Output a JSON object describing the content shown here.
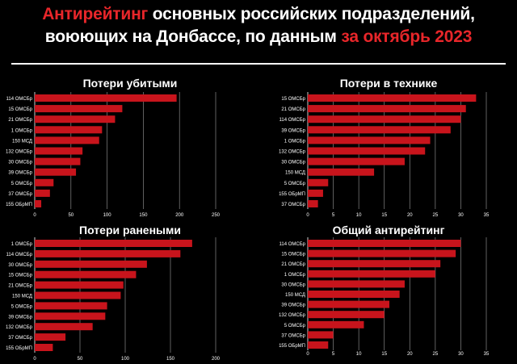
{
  "title": {
    "part1": "Антирейтинг",
    "part2": " основных российских подразделений,",
    "part3": "воюющих на Донбассе, по данным ",
    "part4": "за октябрь 2023"
  },
  "colors": {
    "accent": "#e8262a",
    "bar": "#c8141c",
    "background": "#000000",
    "grid": "#888888"
  },
  "chart_data": [
    {
      "type": "bar",
      "orientation": "horizontal",
      "title": "Потери убитыми",
      "categories": [
        "114 ОМСБр",
        "15 ОМСБр",
        "21 ОМСБр",
        "1 ОМСБр",
        "150 МСД",
        "132 ОМСБр",
        "30 ОМСБр",
        "39 ОМСБр",
        "5 ОМСБр",
        "37 ОМСБр",
        "155 ОБрМП"
      ],
      "values": [
        196,
        121,
        111,
        93,
        89,
        66,
        63,
        57,
        26,
        21,
        9
      ],
      "ticks": [
        0,
        50,
        100,
        150,
        200,
        250
      ],
      "xlim": [
        0,
        250
      ],
      "grid": true
    },
    {
      "type": "bar",
      "orientation": "horizontal",
      "title": "Потери в технике",
      "categories": [
        "15 ОМСБр",
        "21 ОМСБр",
        "114 ОМСБр",
        "39 ОМСБр",
        "1 ОМСБр",
        "132 ОМСБр",
        "30 ОМСБр",
        "150 МСД",
        "5 ОМСБр",
        "155 ОБрМП",
        "37 ОМСБр"
      ],
      "values": [
        33,
        31,
        30,
        28,
        24,
        23,
        19,
        13,
        4,
        3,
        2
      ],
      "ticks": [
        0,
        5,
        10,
        15,
        20,
        25,
        30,
        35
      ],
      "xlim": [
        0,
        35
      ],
      "grid": true
    },
    {
      "type": "bar",
      "orientation": "horizontal",
      "title": "Потери ранеными",
      "categories": [
        "1 ОМСБр",
        "114 ОМСБр",
        "30 ОМСБр",
        "15 ОМСБр",
        "21 ОМСБр",
        "150 МСД",
        "5 ОМСБр",
        "39 ОМСБр",
        "132 ОМСБр",
        "37 ОМСБр",
        "155 ОБрМП"
      ],
      "values": [
        174,
        161,
        124,
        112,
        98,
        95,
        80,
        78,
        64,
        34,
        20
      ],
      "ticks": [
        0,
        50,
        100,
        150,
        200
      ],
      "xlim": [
        0,
        200
      ],
      "grid": true
    },
    {
      "type": "bar",
      "orientation": "horizontal",
      "title": "Общий антирейтинг",
      "categories": [
        "114 ОМСБр",
        "15 ОМСБр",
        "21 ОМСБр",
        "1 ОМСБр",
        "30 ОМСБр",
        "150 МСД",
        "39 ОМСБр",
        "132 ОМСБр",
        "5 ОМСБр",
        "37 ОМСБр",
        "155 ОБрМП"
      ],
      "values": [
        30,
        29,
        26,
        25,
        19,
        18,
        16,
        15,
        11,
        5,
        4
      ],
      "ticks": [
        0,
        5,
        10,
        15,
        20,
        25,
        30,
        35
      ],
      "xlim": [
        0,
        35
      ],
      "grid": true
    }
  ]
}
